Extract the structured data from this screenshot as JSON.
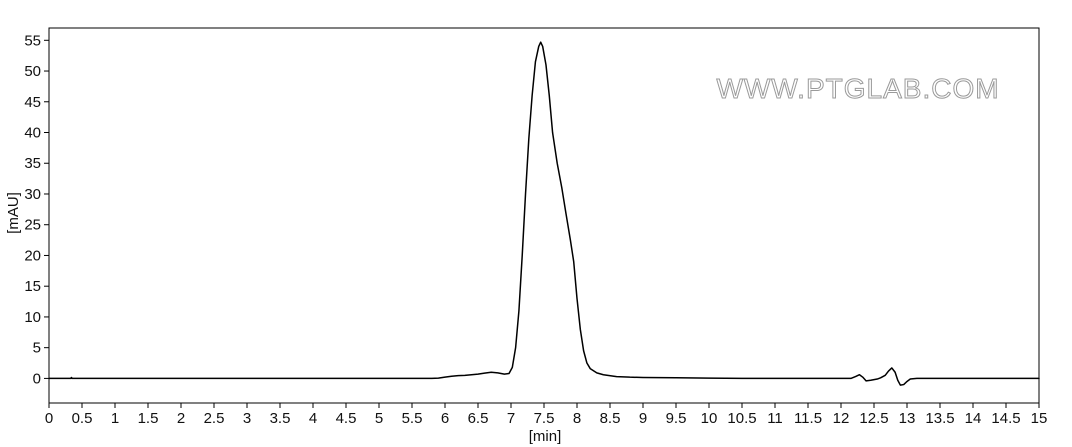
{
  "chart_data": {
    "type": "line",
    "title": "",
    "xlabel": "[min]",
    "ylabel": "[mAU]",
    "xlim": [
      0,
      15
    ],
    "ylim": [
      -4,
      57
    ],
    "grid": false,
    "x_ticks": [
      "0",
      "0.5",
      "1",
      "1.5",
      "2",
      "2.5",
      "3",
      "3.5",
      "4",
      "4.5",
      "5",
      "5.5",
      "6",
      "6.5",
      "7",
      "7.5",
      "8",
      "8.5",
      "9",
      "9.5",
      "10",
      "10.5",
      "11",
      "11.5",
      "12",
      "12.5",
      "13",
      "13.5",
      "14",
      "14.5",
      "15"
    ],
    "y_ticks": [
      "0",
      "5",
      "10",
      "15",
      "20",
      "25",
      "30",
      "35",
      "40",
      "45",
      "50",
      "55"
    ],
    "series": [
      {
        "color": "#000000",
        "points": [
          [
            0.0,
            0.0
          ],
          [
            0.33,
            0.0
          ],
          [
            0.34,
            0.15
          ],
          [
            0.35,
            0.0
          ],
          [
            1.0,
            0.0
          ],
          [
            3.0,
            0.0
          ],
          [
            5.0,
            0.0
          ],
          [
            5.8,
            0.0
          ],
          [
            5.9,
            0.05
          ],
          [
            6.0,
            0.2
          ],
          [
            6.1,
            0.35
          ],
          [
            6.2,
            0.45
          ],
          [
            6.3,
            0.5
          ],
          [
            6.4,
            0.6
          ],
          [
            6.5,
            0.7
          ],
          [
            6.6,
            0.85
          ],
          [
            6.7,
            1.0
          ],
          [
            6.8,
            0.9
          ],
          [
            6.9,
            0.7
          ],
          [
            6.97,
            0.8
          ],
          [
            7.02,
            1.8
          ],
          [
            7.07,
            5.0
          ],
          [
            7.12,
            11.0
          ],
          [
            7.17,
            20.0
          ],
          [
            7.22,
            30.0
          ],
          [
            7.27,
            39.0
          ],
          [
            7.32,
            46.0
          ],
          [
            7.37,
            51.5
          ],
          [
            7.42,
            54.0
          ],
          [
            7.45,
            54.7
          ],
          [
            7.48,
            54.0
          ],
          [
            7.53,
            51.0
          ],
          [
            7.58,
            46.0
          ],
          [
            7.63,
            40.0
          ],
          [
            7.7,
            35.0
          ],
          [
            7.77,
            31.0
          ],
          [
            7.83,
            27.0
          ],
          [
            7.9,
            22.5
          ],
          [
            7.95,
            19.0
          ],
          [
            8.0,
            13.0
          ],
          [
            8.05,
            8.0
          ],
          [
            8.1,
            4.5
          ],
          [
            8.15,
            2.5
          ],
          [
            8.2,
            1.6
          ],
          [
            8.3,
            0.9
          ],
          [
            8.4,
            0.6
          ],
          [
            8.6,
            0.3
          ],
          [
            8.8,
            0.2
          ],
          [
            9.0,
            0.15
          ],
          [
            9.5,
            0.1
          ],
          [
            10.0,
            0.05
          ],
          [
            10.5,
            0.0
          ],
          [
            11.5,
            0.0
          ],
          [
            12.15,
            0.0
          ],
          [
            12.22,
            0.3
          ],
          [
            12.28,
            0.6
          ],
          [
            12.33,
            0.2
          ],
          [
            12.38,
            -0.4
          ],
          [
            12.45,
            -0.3
          ],
          [
            12.55,
            -0.1
          ],
          [
            12.6,
            0.1
          ],
          [
            12.67,
            0.5
          ],
          [
            12.72,
            1.2
          ],
          [
            12.77,
            1.7
          ],
          [
            12.82,
            1.0
          ],
          [
            12.86,
            -0.3
          ],
          [
            12.9,
            -1.1
          ],
          [
            12.95,
            -1.0
          ],
          [
            13.0,
            -0.5
          ],
          [
            13.05,
            -0.1
          ],
          [
            13.15,
            0.0
          ],
          [
            13.5,
            0.0
          ],
          [
            14.0,
            0.0
          ],
          [
            15.0,
            0.0
          ]
        ]
      }
    ],
    "watermark": "WWW.PTGLAB.COM"
  }
}
